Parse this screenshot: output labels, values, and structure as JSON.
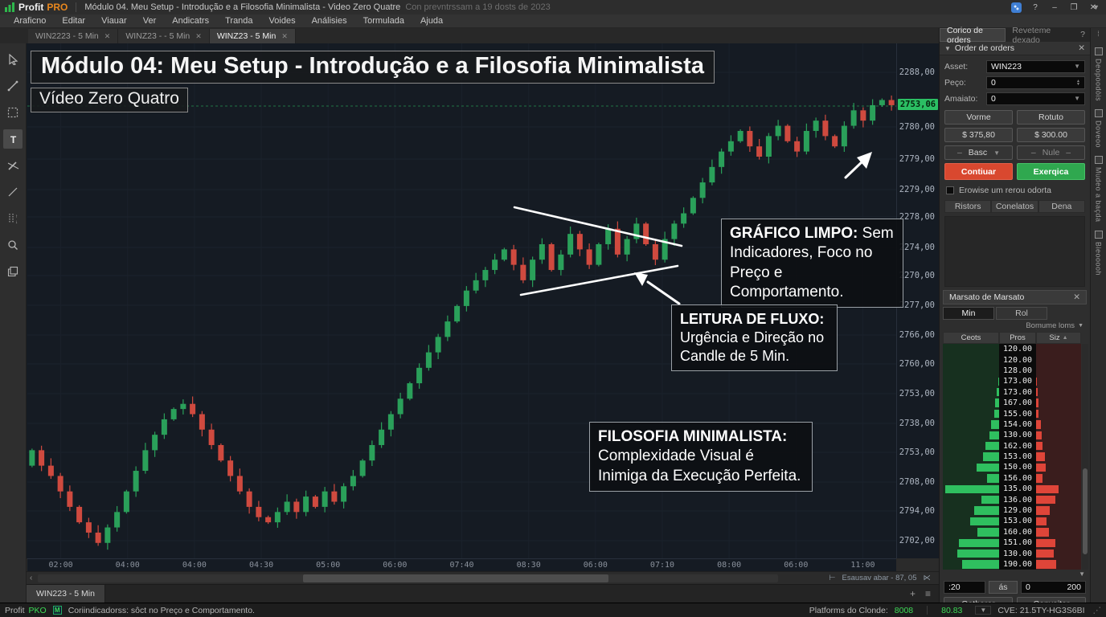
{
  "window": {
    "logo_profit": "Profit",
    "logo_pro": "PRO",
    "title": "Módulo 04. Meu Setup - Introdução e a Filosofia Minimalista - Video Zero Quatre",
    "subtitle": "Con prevntrssam a 19 dosts de 2023",
    "help": "?",
    "minimize": "–",
    "maximize": "❐",
    "close": "✕"
  },
  "menu": {
    "items": [
      "Araficno",
      "Editar",
      "Viauar",
      "Ver",
      "Andicatrs",
      "Tranda",
      "Voides",
      "Análisies",
      "Tormulada",
      "Ajuda"
    ]
  },
  "tabs": [
    {
      "label": "WIN2223 - 5 Min",
      "active": false
    },
    {
      "label": "WINZ23 - - 5 Min",
      "active": false
    },
    {
      "label": "WINZ23 - 5 Min",
      "active": true
    }
  ],
  "chart": {
    "title": "Módulo 04: Meu Setup - Introdução e a Filosofia Minimalista",
    "subtitle": "Vídeo Zero Quatro",
    "annotations": [
      {
        "title": "GRÁFICO LIMPO:",
        "body": " Sem Indicadores, Foco no Preço e Comportamento."
      },
      {
        "title": "LEITURA DE FLUXO:",
        "body": " Urgência e Direção no Candle de 5 Min."
      },
      {
        "title": "FILOSOFIA MINIMALISTA:",
        "body": " Complexidade Visual é Inimiga da Execução Perfeita."
      }
    ],
    "current_price": "2753,06",
    "price_labels": [
      "2288,00",
      "2780,00",
      "2779,00",
      "2279,00",
      "2278,00",
      "2274,00",
      "2270,00",
      "2277,00",
      "2766,00",
      "2760,00",
      "2753,00",
      "2738,00",
      "2753,00",
      "2708,00",
      "2794,00",
      "2702,00"
    ],
    "time_labels": [
      "02:00",
      "04:00",
      "04:00",
      "04:30",
      "05:00",
      "06:00",
      "07:40",
      "08:30",
      "06:00",
      "07:10",
      "08:00",
      "06:00",
      "11:00"
    ],
    "scale_label": "Esausav abar - 87, 05",
    "candles_close_pct": [
      79,
      82,
      84,
      87,
      90,
      93,
      95,
      97,
      94,
      91,
      87,
      83,
      79,
      76,
      73,
      71,
      70,
      72,
      75,
      78,
      81,
      84,
      87,
      90,
      92,
      93,
      91,
      89,
      91,
      88,
      90,
      87,
      89,
      86,
      84,
      81,
      78,
      75,
      72,
      69,
      66,
      63,
      60,
      57,
      54,
      51,
      48,
      46,
      44,
      42,
      40,
      43,
      46,
      42,
      39,
      44,
      41,
      37,
      40,
      43,
      39,
      36,
      41,
      38,
      35,
      39,
      42,
      38,
      35,
      33,
      30,
      27,
      24,
      21,
      19,
      17,
      20,
      22,
      18,
      16,
      19,
      21,
      17,
      15,
      18,
      20,
      16,
      13,
      15,
      12,
      11,
      12
    ],
    "colors": {
      "up": "#2aa05a",
      "down": "#cf4a3f",
      "line": "#ffffff",
      "current": "#2bbf63"
    }
  },
  "order_panel": {
    "tabs": {
      "active": "Corico de orders",
      "inactive": "Reveteme dexado",
      "help": "?"
    },
    "title": "Order de orders",
    "fields": [
      {
        "label": "Asset:",
        "value": "WIN223"
      },
      {
        "label": "Peço:",
        "value": "0"
      },
      {
        "label": "Amaiato:",
        "value": "0"
      }
    ],
    "btn_row1": [
      "Vorme",
      "Rotuto"
    ],
    "btn_row2": [
      "$ 375,80",
      "$ 300.00"
    ],
    "selects": [
      "Basc",
      "Nule"
    ],
    "buy_label": "Contiuar",
    "sell_label": "Exerqica",
    "checkbox_label": "Erowise um rerou odorta",
    "subtabs": [
      "Ristors",
      "Conelatos",
      "Dena"
    ]
  },
  "market_depth": {
    "title": "Marsato de Marsato",
    "tabs": [
      "Min",
      "Rol"
    ],
    "volume_select": "Bomume loms",
    "columns": [
      "Ceots",
      "Pros",
      "Siz"
    ],
    "rows": [
      {
        "price": "120.00",
        "bid": 0,
        "ask": 0
      },
      {
        "price": "120.00",
        "bid": 0,
        "ask": 0
      },
      {
        "price": "128.00",
        "bid": 0,
        "ask": 0
      },
      {
        "price": "173.00",
        "bid": 2,
        "ask": 2
      },
      {
        "price": "173.00",
        "bid": 5,
        "ask": 4
      },
      {
        "price": "167.00",
        "bid": 7,
        "ask": 5
      },
      {
        "price": "155.00",
        "bid": 9,
        "ask": 6
      },
      {
        "price": "154.00",
        "bid": 15,
        "ask": 11
      },
      {
        "price": "130.00",
        "bid": 17,
        "ask": 13
      },
      {
        "price": "162.00",
        "bid": 24,
        "ask": 15
      },
      {
        "price": "153.00",
        "bid": 28,
        "ask": 19
      },
      {
        "price": "150.00",
        "bid": 40,
        "ask": 22
      },
      {
        "price": "156.00",
        "bid": 22,
        "ask": 15
      },
      {
        "price": "135.00",
        "bid": 96,
        "ask": 50
      },
      {
        "price": "136.00",
        "bid": 32,
        "ask": 42
      },
      {
        "price": "129.00",
        "bid": 44,
        "ask": 30
      },
      {
        "price": "153.00",
        "bid": 52,
        "ask": 24
      },
      {
        "price": "160.00",
        "bid": 38,
        "ask": 28
      },
      {
        "price": "151.00",
        "bid": 72,
        "ask": 42
      },
      {
        "price": "130.00",
        "bid": 74,
        "ask": 40
      },
      {
        "price": "190.00",
        "bid": 66,
        "ask": 44
      }
    ],
    "footer": {
      "from": ":20",
      "to_label": "ás",
      "min": "0",
      "max": "200"
    },
    "actions": [
      "Gatherer",
      "Convoitar"
    ]
  },
  "vstrip": {
    "items": [
      "Deopoodòis",
      "Doveoo",
      "Mudeo a baçda",
      "Bieooooh"
    ]
  },
  "footer_tab": "WIN223 - 5 Min",
  "statusbar": {
    "app": "Profit",
    "app2": "PKO",
    "message": "Coriindicadorss: sôct no Preço e Comportamento.",
    "right_label": "Platforms do Clonde:",
    "value1": "8008",
    "value2": "80.83",
    "cve": "CVE: 21.5TY-HG3S6BI"
  }
}
